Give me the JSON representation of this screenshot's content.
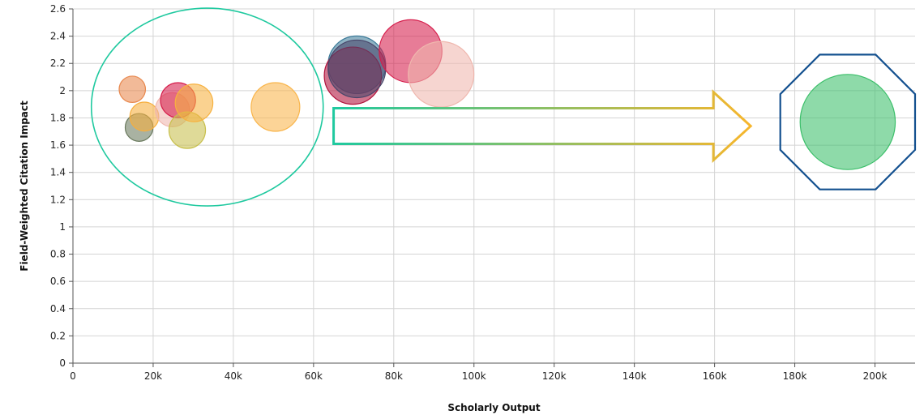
{
  "chart_data": {
    "type": "scatter",
    "title": "",
    "xlabel": "Scholarly Output",
    "ylabel": "Field-Weighted Citation Impact",
    "xlim": [
      0,
      210000
    ],
    "ylim": [
      0,
      2.6
    ],
    "x_ticks": [
      {
        "value": 0,
        "label": "0"
      },
      {
        "value": 20000,
        "label": "20k"
      },
      {
        "value": 40000,
        "label": "40k"
      },
      {
        "value": 60000,
        "label": "60k"
      },
      {
        "value": 80000,
        "label": "80k"
      },
      {
        "value": 100000,
        "label": "100k"
      },
      {
        "value": 120000,
        "label": "120k"
      },
      {
        "value": 140000,
        "label": "140k"
      },
      {
        "value": 160000,
        "label": "160k"
      },
      {
        "value": 180000,
        "label": "180k"
      },
      {
        "value": 200000,
        "label": "200k"
      }
    ],
    "y_ticks": [
      {
        "value": 0,
        "label": "0"
      },
      {
        "value": 0.2,
        "label": "0.2"
      },
      {
        "value": 0.4,
        "label": "0.4"
      },
      {
        "value": 0.6,
        "label": "0.6"
      },
      {
        "value": 0.8,
        "label": "0.8"
      },
      {
        "value": 1.0,
        "label": "1"
      },
      {
        "value": 1.2,
        "label": "1.2"
      },
      {
        "value": 1.4,
        "label": "1.4"
      },
      {
        "value": 1.6,
        "label": "1.6"
      },
      {
        "value": 1.8,
        "label": "1.8"
      },
      {
        "value": 2.0,
        "label": "2"
      },
      {
        "value": 2.2,
        "label": "2.2"
      },
      {
        "value": 2.4,
        "label": "2.4"
      },
      {
        "value": 2.6,
        "label": "2.6"
      }
    ],
    "grid": true,
    "bubble_size_encodes": "Scholarly Output",
    "points": [
      {
        "x": 14800,
        "y": 2.01,
        "color": "#e8884e"
      },
      {
        "x": 16500,
        "y": 1.73,
        "color": "#6a7a5e"
      },
      {
        "x": 17800,
        "y": 1.81,
        "color": "#f7ae3c"
      },
      {
        "x": 24800,
        "y": 1.86,
        "color": "#f0b7ae"
      },
      {
        "x": 26200,
        "y": 1.93,
        "color": "#d61d4b"
      },
      {
        "x": 28500,
        "y": 1.71,
        "color": "#c8c04e"
      },
      {
        "x": 30200,
        "y": 1.91,
        "color": "#f7b13f"
      },
      {
        "x": 50500,
        "y": 1.88,
        "color": "#f9b54b"
      },
      {
        "x": 70800,
        "y": 2.19,
        "color": "#3e7c9a"
      },
      {
        "x": 69800,
        "y": 2.11,
        "color": "#b0123b"
      },
      {
        "x": 70800,
        "y": 2.16,
        "color": "#48466a"
      },
      {
        "x": 84200,
        "y": 2.29,
        "color": "#d61d4b"
      },
      {
        "x": 91800,
        "y": 2.12,
        "color": "#efb7ae"
      },
      {
        "x": 193200,
        "y": 1.77,
        "color": "#3cbf6a"
      }
    ],
    "annotations": [
      {
        "type": "ellipse",
        "center_x": 33500,
        "center_y": 1.88,
        "color": "#1fc99f",
        "encloses": "smaller outputs cluster"
      },
      {
        "type": "arrow",
        "from_x": 65000,
        "to_x": 169000,
        "y": 1.74,
        "gradient": [
          "#1fc99f",
          "#f7b62c"
        ]
      },
      {
        "type": "octagon",
        "center_x": 193200,
        "center_y": 1.77,
        "color": "#13508f",
        "encloses": "largest output"
      }
    ]
  }
}
